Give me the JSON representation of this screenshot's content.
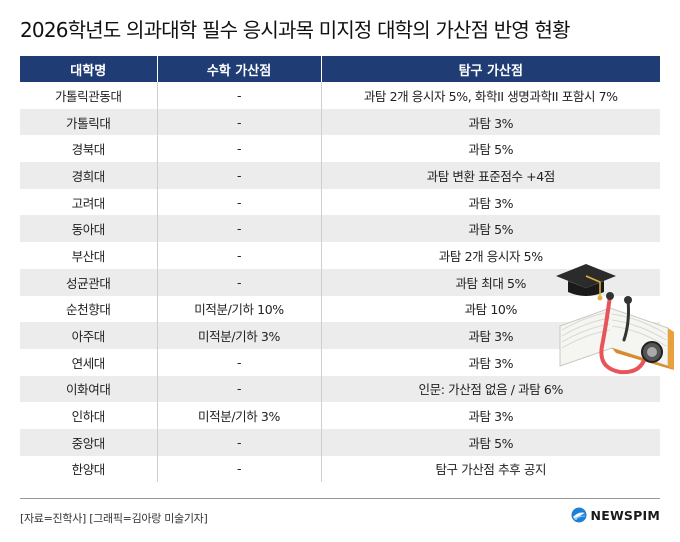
{
  "title": "2026학년도 의과대학 필수 응시과목 미지정 대학의 가산점 반영 현황",
  "table": {
    "headers": [
      "대학명",
      "수학 가산점",
      "탐구 가산점"
    ],
    "rows": [
      [
        "가톨릭관동대",
        "-",
        "과탐 2개 응시자 5%, 화학II 생명과학II 포함시 7%"
      ],
      [
        "가톨릭대",
        "-",
        "과탐 3%"
      ],
      [
        "경북대",
        "-",
        "과탐 5%"
      ],
      [
        "경희대",
        "-",
        "과탐 변환 표준점수 +4점"
      ],
      [
        "고려대",
        "-",
        "과탐 3%"
      ],
      [
        "동아대",
        "-",
        "과탐 5%"
      ],
      [
        "부산대",
        "-",
        "과탐 2개 응시자 5%"
      ],
      [
        "성균관대",
        "-",
        "과탐 최대 5%"
      ],
      [
        "순천향대",
        "미적분/기하 10%",
        "과탐 10%"
      ],
      [
        "아주대",
        "미적분/기하 3%",
        "과탐 3%"
      ],
      [
        "연세대",
        "-",
        "과탐 3%"
      ],
      [
        "이화여대",
        "-",
        "인문: 가산점 없음 / 과탐 6%"
      ],
      [
        "인하대",
        "미적분/기하 3%",
        "과탐 3%"
      ],
      [
        "중앙대",
        "-",
        "과탐 5%"
      ],
      [
        "한양대",
        "-",
        "탐구 가산점 추후 공지"
      ]
    ]
  },
  "footer": {
    "source": "[자료=진학사] [그래픽=김아랑 미술기자]",
    "logo": "NEWSPIM"
  },
  "colors": {
    "header_bg": "#203c75",
    "stripe": "#ececec",
    "logo_accent": "#1e7fd6"
  },
  "icons": [
    "newspim-logo-icon",
    "graduation-cap-book-stethoscope-illustration"
  ]
}
